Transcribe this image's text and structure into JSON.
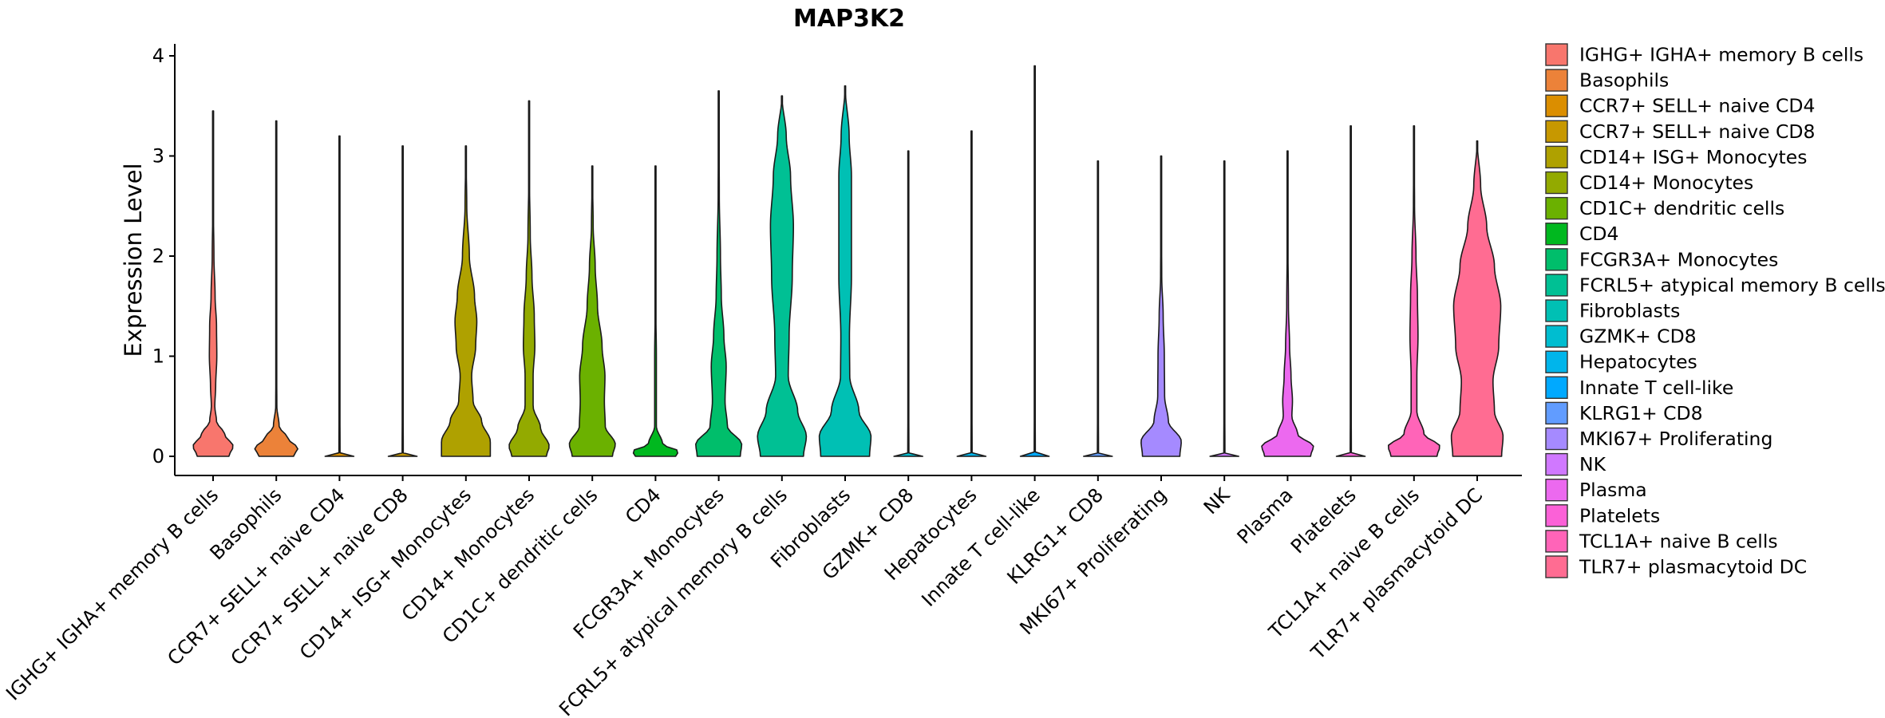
{
  "chart_data": {
    "type": "violin",
    "title": "MAP3K2",
    "xlabel": "",
    "ylabel": "Expression Level",
    "ylim": [
      -0.2,
      4.1
    ],
    "yticks": [
      0,
      1,
      2,
      3,
      4
    ],
    "ytick_labels": [
      "0",
      "1",
      "2",
      "3",
      "4"
    ],
    "grid": false,
    "legend_position": "right",
    "categories": [
      "IGHG+ IGHA+ memory B cells",
      "Basophils",
      "CCR7+ SELL+ naive CD4",
      "CCR7+ SELL+ naive CD8",
      "CD14+ ISG+ Monocytes",
      "CD14+ Monocytes",
      "CD1C+ dendritic cells",
      "CD4",
      "FCGR3A+ Monocytes",
      "FCRL5+ atypical memory B cells",
      "Fibroblasts",
      "GZMK+ CD8",
      "Hepatocytes",
      "Innate T cell-like",
      "KLRG1+ CD8",
      "MKI67+ Proliferating",
      "NK",
      "Plasma",
      "Platelets",
      "TCL1A+ naive B cells",
      "TLR7+ plasmacytoid DC"
    ],
    "legend_labels": [
      " IGHG+ IGHA+ memory B cells",
      "Basophils",
      "CCR7+ SELL+ naive CD4",
      "CCR7+ SELL+ naive CD8",
      "CD14+ ISG+ Monocytes",
      "CD14+ Monocytes",
      "CD1C+ dendritic cells",
      "CD4",
      "FCGR3A+ Monocytes",
      "FCRL5+ atypical memory B cells",
      "Fibroblasts",
      "GZMK+ CD8",
      "Hepatocytes",
      "Innate T cell-like",
      "KLRG1+ CD8",
      "MKI67+ Proliferating",
      "NK",
      "Plasma",
      "Platelets",
      "TCL1A+ naive B cells",
      "TLR7+ plasmacytoid DC"
    ],
    "colors": [
      "#F8766D",
      "#EC8239",
      "#DB8E00",
      "#C79800",
      "#AFA100",
      "#93AA00",
      "#6BB100",
      "#00B81F",
      "#00BE6B",
      "#00C094",
      "#00C0B4",
      "#00BDD0",
      "#00B5EB",
      "#00A9FF",
      "#619CFF",
      "#A58AFF",
      "#D078FF",
      "#EC69EF",
      "#FB61D7",
      "#FF64B8",
      "#FF6C92"
    ],
    "violins": [
      {
        "max": 3.45,
        "profile": [
          [
            0,
            0.55
          ],
          [
            0.1,
            0.7
          ],
          [
            0.22,
            0.4
          ],
          [
            0.35,
            0.12
          ],
          [
            0.5,
            0.06
          ],
          [
            0.7,
            0.09
          ],
          [
            1.0,
            0.13
          ],
          [
            1.3,
            0.12
          ],
          [
            1.6,
            0.07
          ],
          [
            2.0,
            0.03
          ],
          [
            2.5,
            0.01
          ],
          [
            3.45,
            0
          ]
        ]
      },
      {
        "max": 3.35,
        "profile": [
          [
            0,
            0.6
          ],
          [
            0.08,
            0.75
          ],
          [
            0.18,
            0.4
          ],
          [
            0.3,
            0.1
          ],
          [
            0.5,
            0.02
          ],
          [
            1.0,
            0.01
          ],
          [
            2.0,
            0.01
          ],
          [
            2.5,
            0.012
          ],
          [
            3.35,
            0
          ]
        ]
      },
      {
        "max": 3.2,
        "profile": [
          [
            0,
            0.5
          ],
          [
            0.01,
            0.5
          ],
          [
            0.03,
            0.02
          ],
          [
            1.0,
            0.005
          ],
          [
            3.2,
            0
          ]
        ]
      },
      {
        "max": 3.1,
        "profile": [
          [
            0,
            0.5
          ],
          [
            0.01,
            0.5
          ],
          [
            0.03,
            0.02
          ],
          [
            1.0,
            0.005
          ],
          [
            3.1,
            0
          ]
        ]
      },
      {
        "max": 3.1,
        "profile": [
          [
            0,
            0.85
          ],
          [
            0.15,
            0.85
          ],
          [
            0.35,
            0.55
          ],
          [
            0.55,
            0.25
          ],
          [
            0.8,
            0.2
          ],
          [
            1.1,
            0.34
          ],
          [
            1.35,
            0.38
          ],
          [
            1.6,
            0.3
          ],
          [
            2.0,
            0.12
          ],
          [
            2.5,
            0.03
          ],
          [
            3.1,
            0
          ]
        ]
      },
      {
        "max": 3.55,
        "profile": [
          [
            0,
            0.6
          ],
          [
            0.1,
            0.7
          ],
          [
            0.28,
            0.4
          ],
          [
            0.5,
            0.14
          ],
          [
            0.8,
            0.14
          ],
          [
            1.1,
            0.2
          ],
          [
            1.4,
            0.18
          ],
          [
            1.8,
            0.1
          ],
          [
            2.2,
            0.04
          ],
          [
            2.8,
            0.01
          ],
          [
            3.55,
            0
          ]
        ]
      },
      {
        "max": 2.9,
        "profile": [
          [
            0,
            0.7
          ],
          [
            0.12,
            0.8
          ],
          [
            0.3,
            0.45
          ],
          [
            0.55,
            0.42
          ],
          [
            0.8,
            0.44
          ],
          [
            1.1,
            0.34
          ],
          [
            1.5,
            0.18
          ],
          [
            1.9,
            0.1
          ],
          [
            2.3,
            0.03
          ],
          [
            2.9,
            0
          ]
        ]
      },
      {
        "max": 2.9,
        "profile": [
          [
            0,
            0.7
          ],
          [
            0.05,
            0.8
          ],
          [
            0.12,
            0.25
          ],
          [
            0.3,
            0.03
          ],
          [
            1.0,
            0.03
          ],
          [
            1.5,
            0.01
          ],
          [
            2.9,
            0
          ]
        ]
      },
      {
        "max": 3.65,
        "profile": [
          [
            0,
            0.75
          ],
          [
            0.12,
            0.8
          ],
          [
            0.3,
            0.3
          ],
          [
            0.55,
            0.22
          ],
          [
            0.9,
            0.26
          ],
          [
            1.2,
            0.18
          ],
          [
            1.6,
            0.09
          ],
          [
            2.0,
            0.06
          ],
          [
            2.6,
            0.02
          ],
          [
            3.65,
            0
          ]
        ]
      },
      {
        "max": 3.6,
        "profile": [
          [
            0,
            0.75
          ],
          [
            0.2,
            0.85
          ],
          [
            0.45,
            0.55
          ],
          [
            0.8,
            0.22
          ],
          [
            1.2,
            0.25
          ],
          [
            1.8,
            0.36
          ],
          [
            2.3,
            0.4
          ],
          [
            2.8,
            0.3
          ],
          [
            3.2,
            0.15
          ],
          [
            3.6,
            0
          ]
        ]
      },
      {
        "max": 3.7,
        "profile": [
          [
            0,
            0.85
          ],
          [
            0.2,
            0.9
          ],
          [
            0.45,
            0.48
          ],
          [
            0.8,
            0.16
          ],
          [
            1.2,
            0.15
          ],
          [
            1.8,
            0.22
          ],
          [
            2.3,
            0.22
          ],
          [
            2.8,
            0.22
          ],
          [
            3.2,
            0.14
          ],
          [
            3.7,
            0
          ]
        ]
      },
      {
        "max": 3.05,
        "profile": [
          [
            0,
            0.5
          ],
          [
            0.01,
            0.5
          ],
          [
            0.03,
            0.02
          ],
          [
            1.0,
            0.005
          ],
          [
            3.05,
            0
          ]
        ]
      },
      {
        "max": 3.25,
        "profile": [
          [
            0,
            0.5
          ],
          [
            0.01,
            0.5
          ],
          [
            0.03,
            0.02
          ],
          [
            1.0,
            0.005
          ],
          [
            3.25,
            0
          ]
        ]
      },
      {
        "max": 3.9,
        "profile": [
          [
            0,
            0.5
          ],
          [
            0.01,
            0.5
          ],
          [
            0.03,
            0.02
          ],
          [
            1.0,
            0.005
          ],
          [
            3.9,
            0
          ]
        ]
      },
      {
        "max": 2.95,
        "profile": [
          [
            0,
            0.5
          ],
          [
            0.01,
            0.5
          ],
          [
            0.03,
            0.02
          ],
          [
            1.0,
            0.005
          ],
          [
            2.95,
            0
          ]
        ]
      },
      {
        "max": 3.0,
        "profile": [
          [
            0,
            0.65
          ],
          [
            0.15,
            0.7
          ],
          [
            0.35,
            0.25
          ],
          [
            0.6,
            0.12
          ],
          [
            1.0,
            0.11
          ],
          [
            1.4,
            0.07
          ],
          [
            1.8,
            0.02
          ],
          [
            2.3,
            0.01
          ],
          [
            3.0,
            0
          ]
        ]
      },
      {
        "max": 2.95,
        "profile": [
          [
            0,
            0.5
          ],
          [
            0.01,
            0.5
          ],
          [
            0.03,
            0.02
          ],
          [
            1.0,
            0.005
          ],
          [
            2.95,
            0
          ]
        ]
      },
      {
        "max": 3.05,
        "profile": [
          [
            0,
            0.8
          ],
          [
            0.1,
            0.9
          ],
          [
            0.22,
            0.35
          ],
          [
            0.4,
            0.15
          ],
          [
            0.55,
            0.17
          ],
          [
            0.8,
            0.12
          ],
          [
            1.1,
            0.07
          ],
          [
            1.5,
            0.03
          ],
          [
            2.2,
            0.01
          ],
          [
            3.05,
            0
          ]
        ]
      },
      {
        "max": 3.3,
        "profile": [
          [
            0,
            0.5
          ],
          [
            0.01,
            0.5
          ],
          [
            0.03,
            0.02
          ],
          [
            1.0,
            0.005
          ],
          [
            3.3,
            0
          ]
        ]
      },
      {
        "max": 3.3,
        "profile": [
          [
            0,
            0.8
          ],
          [
            0.1,
            0.9
          ],
          [
            0.22,
            0.35
          ],
          [
            0.45,
            0.1
          ],
          [
            0.8,
            0.1
          ],
          [
            1.2,
            0.14
          ],
          [
            1.6,
            0.12
          ],
          [
            2.0,
            0.07
          ],
          [
            2.5,
            0.02
          ],
          [
            3.3,
            0
          ]
        ]
      },
      {
        "max": 3.15,
        "profile": [
          [
            0,
            0.85
          ],
          [
            0.2,
            0.9
          ],
          [
            0.45,
            0.6
          ],
          [
            0.75,
            0.55
          ],
          [
            1.1,
            0.75
          ],
          [
            1.5,
            0.82
          ],
          [
            1.9,
            0.6
          ],
          [
            2.3,
            0.33
          ],
          [
            2.7,
            0.12
          ],
          [
            3.15,
            0
          ]
        ]
      }
    ]
  }
}
